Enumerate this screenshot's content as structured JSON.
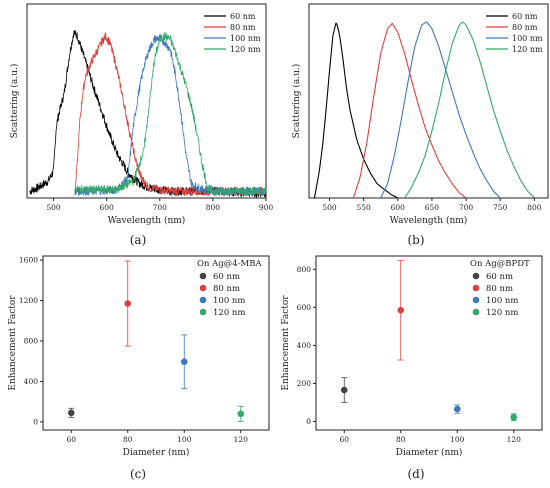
{
  "chart_data": [
    {
      "id": "a",
      "type": "line",
      "panel_label": "(a)",
      "xlabel": "Wavelength (nm)",
      "ylabel": "Scattering (a.u.)",
      "xlim": [
        450,
        900
      ],
      "ylim": [
        0,
        1.15
      ],
      "xticks": [
        500,
        600,
        700,
        800,
        900
      ],
      "legend": "top-right",
      "noisy": true,
      "series": [
        {
          "name": "60 nm",
          "color": "#000000",
          "x": [
            455,
            470,
            480,
            490,
            500,
            505,
            510,
            520,
            530,
            538,
            545,
            555,
            565,
            575,
            590,
            605,
            620,
            640,
            660,
            680,
            700,
            720,
            740,
            760,
            780,
            800,
            820,
            850,
            880,
            900
          ],
          "y": [
            0.04,
            0.06,
            0.08,
            0.1,
            0.16,
            0.42,
            0.5,
            0.62,
            0.85,
            0.98,
            0.96,
            0.86,
            0.76,
            0.66,
            0.52,
            0.38,
            0.26,
            0.15,
            0.09,
            0.06,
            0.05,
            0.04,
            0.04,
            0.04,
            0.04,
            0.04,
            0.04,
            0.03,
            0.03,
            0.03
          ]
        },
        {
          "name": "80 nm",
          "color": "#d9423e",
          "x": [
            540,
            545,
            550,
            555,
            560,
            570,
            580,
            590,
            598,
            606,
            615,
            625,
            635,
            645,
            655,
            665,
            680,
            700,
            720,
            750,
            780,
            820,
            860,
            900
          ],
          "y": [
            0.02,
            0.22,
            0.48,
            0.62,
            0.72,
            0.8,
            0.86,
            0.92,
            0.96,
            0.92,
            0.82,
            0.68,
            0.52,
            0.36,
            0.22,
            0.12,
            0.06,
            0.05,
            0.04,
            0.04,
            0.04,
            0.04,
            0.04,
            0.04
          ]
        },
        {
          "name": "100 nm",
          "color": "#3f78b6",
          "x": [
            540,
            580,
            620,
            640,
            650,
            660,
            670,
            680,
            690,
            700,
            710,
            720,
            730,
            740,
            750,
            760,
            780,
            820,
            860,
            900
          ],
          "y": [
            0.04,
            0.04,
            0.05,
            0.12,
            0.42,
            0.62,
            0.78,
            0.88,
            0.94,
            0.95,
            0.92,
            0.88,
            0.72,
            0.5,
            0.24,
            0.08,
            0.05,
            0.04,
            0.04,
            0.04
          ]
        },
        {
          "name": "120 nm",
          "color": "#34a76a",
          "x": [
            540,
            580,
            620,
            650,
            670,
            680,
            690,
            700,
            710,
            720,
            730,
            740,
            750,
            760,
            770,
            780,
            790,
            800,
            840,
            900
          ],
          "y": [
            0.05,
            0.05,
            0.05,
            0.1,
            0.28,
            0.55,
            0.82,
            0.94,
            0.96,
            0.94,
            0.86,
            0.76,
            0.66,
            0.54,
            0.38,
            0.2,
            0.06,
            0.04,
            0.04,
            0.04
          ]
        }
      ]
    },
    {
      "id": "b",
      "type": "line",
      "panel_label": "(b)",
      "xlabel": "Wavelength (nm)",
      "ylabel": "Scattering (a.u.)",
      "xlim": [
        470,
        820
      ],
      "ylim": [
        0,
        1.1
      ],
      "xticks": [
        500,
        550,
        600,
        650,
        700,
        750,
        800
      ],
      "legend": "top-right",
      "noisy": false,
      "series": [
        {
          "name": "60 nm",
          "color": "#000000",
          "x": [
            478,
            485,
            490,
            495,
            500,
            505,
            510,
            515,
            520,
            525,
            530,
            540,
            550,
            560,
            570,
            580,
            590,
            600
          ],
          "y": [
            0.0,
            0.15,
            0.3,
            0.5,
            0.72,
            0.92,
            1.0,
            0.92,
            0.78,
            0.62,
            0.5,
            0.33,
            0.22,
            0.14,
            0.08,
            0.05,
            0.02,
            0.0
          ]
        },
        {
          "name": "80 nm",
          "color": "#d9423e",
          "x": [
            535,
            545,
            555,
            565,
            575,
            585,
            592,
            600,
            610,
            620,
            630,
            640,
            650,
            660,
            670,
            680,
            690,
            700
          ],
          "y": [
            0.0,
            0.12,
            0.32,
            0.58,
            0.82,
            0.96,
            0.99,
            0.94,
            0.82,
            0.67,
            0.53,
            0.4,
            0.3,
            0.21,
            0.14,
            0.08,
            0.03,
            0.0
          ]
        },
        {
          "name": "100 nm",
          "color": "#3f78b6",
          "x": [
            575,
            585,
            595,
            605,
            615,
            625,
            635,
            642,
            650,
            660,
            670,
            680,
            690,
            700,
            710,
            720,
            730,
            740,
            750
          ],
          "y": [
            0.0,
            0.08,
            0.24,
            0.44,
            0.66,
            0.86,
            0.98,
            1.0,
            0.96,
            0.86,
            0.73,
            0.6,
            0.47,
            0.36,
            0.26,
            0.17,
            0.1,
            0.04,
            0.0
          ]
        },
        {
          "name": "120 nm",
          "color": "#34a76a",
          "x": [
            610,
            620,
            630,
            640,
            650,
            660,
            670,
            680,
            690,
            695,
            700,
            710,
            720,
            730,
            740,
            750,
            760,
            770,
            780,
            790,
            800
          ],
          "y": [
            0.0,
            0.06,
            0.14,
            0.24,
            0.38,
            0.54,
            0.72,
            0.88,
            0.98,
            1.0,
            0.98,
            0.9,
            0.78,
            0.64,
            0.5,
            0.38,
            0.27,
            0.18,
            0.1,
            0.04,
            0.0
          ]
        }
      ]
    },
    {
      "id": "c",
      "type": "scatter",
      "panel_label": "(c)",
      "xlabel": "Diameter (nm)",
      "ylabel": "Enhancement Factor",
      "xlim": [
        50,
        130
      ],
      "ylim": [
        -80,
        1640
      ],
      "xticks": [
        60,
        80,
        100,
        120
      ],
      "yticks": [
        0,
        400,
        800,
        1200,
        1600
      ],
      "legend_title": "On Ag@4-MBA",
      "legend": "top-right",
      "series": [
        {
          "name": "60 nm",
          "color": "#444444",
          "x": 60,
          "y": 90,
          "err": 45
        },
        {
          "name": "80 nm",
          "color": "#d9423e",
          "x": 80,
          "y": 1170,
          "err": 420
        },
        {
          "name": "100 nm",
          "color": "#3f78b6",
          "x": 100,
          "y": 595,
          "err": 265
        },
        {
          "name": "120 nm",
          "color": "#34a76a",
          "x": 120,
          "y": 80,
          "err": 75
        }
      ]
    },
    {
      "id": "d",
      "type": "scatter",
      "panel_label": "(d)",
      "xlabel": "Diameter (nm)",
      "ylabel": "Enhancement Factor",
      "xlim": [
        50,
        130
      ],
      "ylim": [
        -45,
        870
      ],
      "xticks": [
        60,
        80,
        100,
        120
      ],
      "yticks": [
        0,
        200,
        400,
        600,
        800
      ],
      "legend_title": "On Ag@BPDT",
      "legend": "top-right",
      "series": [
        {
          "name": "60 nm",
          "color": "#444444",
          "x": 60,
          "y": 165,
          "err": 65
        },
        {
          "name": "80 nm",
          "color": "#d9423e",
          "x": 80,
          "y": 585,
          "err": 262
        },
        {
          "name": "100 nm",
          "color": "#3f78b6",
          "x": 100,
          "y": 65,
          "err": 22
        },
        {
          "name": "120 nm",
          "color": "#34a76a",
          "x": 120,
          "y": 22,
          "err": 18
        }
      ]
    }
  ]
}
